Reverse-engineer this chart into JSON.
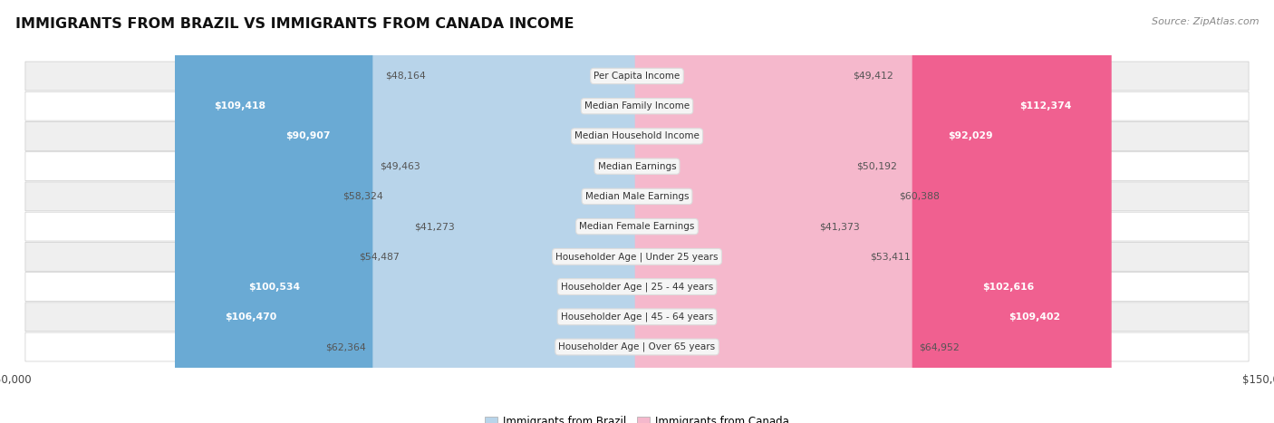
{
  "title": "IMMIGRANTS FROM BRAZIL VS IMMIGRANTS FROM CANADA INCOME",
  "source": "Source: ZipAtlas.com",
  "categories": [
    "Per Capita Income",
    "Median Family Income",
    "Median Household Income",
    "Median Earnings",
    "Median Male Earnings",
    "Median Female Earnings",
    "Householder Age | Under 25 years",
    "Householder Age | 25 - 44 years",
    "Householder Age | 45 - 64 years",
    "Householder Age | Over 65 years"
  ],
  "brazil_values": [
    48164,
    109418,
    90907,
    49463,
    58324,
    41273,
    54487,
    100534,
    106470,
    62364
  ],
  "canada_values": [
    49412,
    112374,
    92029,
    50192,
    60388,
    41373,
    53411,
    102616,
    109402,
    64952
  ],
  "brazil_color_light": "#b8d4ea",
  "brazil_color_dark": "#6aaad4",
  "canada_color_light": "#f5b8cc",
  "canada_color_dark": "#f06090",
  "row_bg_odd": "#efefef",
  "row_bg_even": "#ffffff",
  "label_box_color": "#f5f5f5",
  "label_box_edge": "#dddddd",
  "max_value": 150000,
  "legend_brazil": "Immigrants from Brazil",
  "legend_canada": "Immigrants from Canada",
  "white_threshold": 75000,
  "text_inside_color": "#ffffff",
  "text_outside_color": "#555555"
}
